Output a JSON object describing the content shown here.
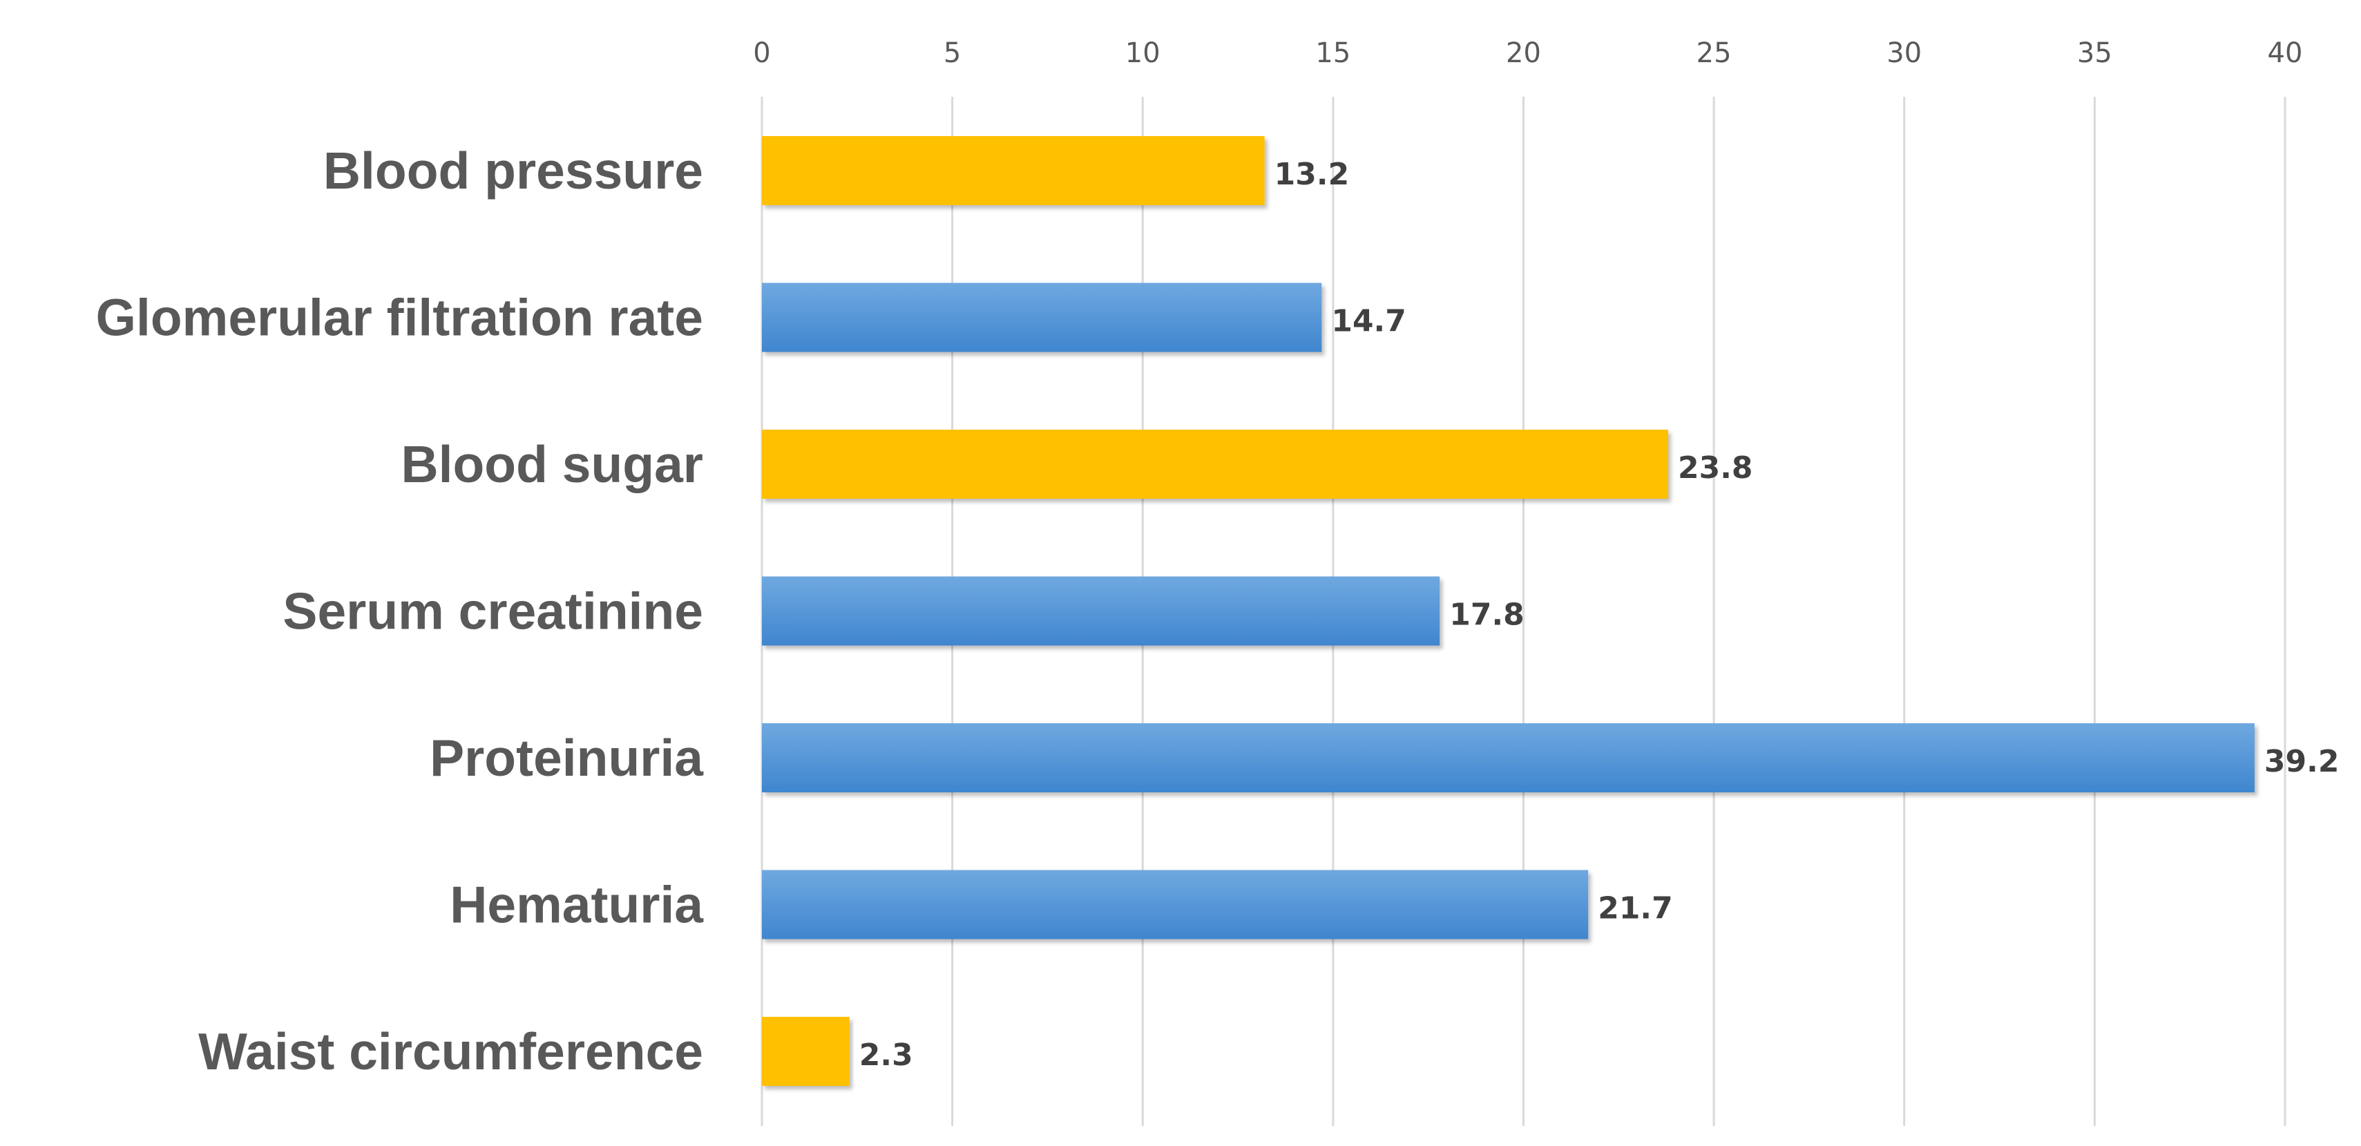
{
  "chart_data": {
    "type": "bar",
    "orientation": "horizontal",
    "title": "",
    "xlabel": "",
    "ylabel": "",
    "xlim": [
      0,
      40
    ],
    "x_ticks": [
      0,
      5,
      10,
      15,
      20,
      25,
      30,
      35,
      40
    ],
    "axis_position": "top",
    "grid": true,
    "categories": [
      "Blood pressure",
      "Glomerular filtration rate",
      "Blood sugar",
      "Serum creatinine",
      "Proteinuria",
      "Hematuria",
      "Waist circumference"
    ],
    "values": [
      13.2,
      14.7,
      23.8,
      17.8,
      39.2,
      21.7,
      2.3
    ],
    "data_labels": [
      "13.2",
      "14.7",
      "23.8",
      "17.8",
      "39.2",
      "21.7",
      "2.3"
    ],
    "bar_colors": [
      "#ffc000",
      "#5b9bd5",
      "#ffc000",
      "#5b9bd5",
      "#5b9bd5",
      "#5b9bd5",
      "#ffc000"
    ]
  },
  "colors": {
    "orange": "#ffc000",
    "blue_light": "#6fa8e0",
    "blue_dark": "#3f86cf",
    "gridline": "#d9d9d9",
    "text": "#595959"
  }
}
